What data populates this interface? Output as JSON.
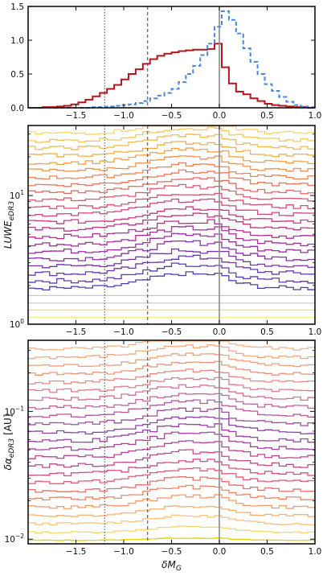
{
  "chart_data": [
    {
      "type": "step-histogram",
      "xlim": [
        -2.0,
        1.0
      ],
      "ylim": [
        0,
        1.5
      ],
      "x_ticks": [
        "-1.5",
        "-1.0",
        "-0.5",
        "0.0",
        "0.5",
        "1.0"
      ],
      "y_ticks": [
        "0.0",
        "0.5",
        "1.0",
        "1.5"
      ],
      "bin_edges_start": -2.0,
      "bin_width": 0.075,
      "reference_lines": [
        {
          "x": -1.2,
          "style": "dotted"
        },
        {
          "x": -0.75,
          "style": "dashed"
        },
        {
          "x": 0.0,
          "style": "solid-gray"
        }
      ],
      "series": [
        {
          "color": "#b5161e",
          "style": "solid",
          "values": [
            0.0,
            0.0,
            0.01,
            0.01,
            0.02,
            0.03,
            0.05,
            0.08,
            0.12,
            0.17,
            0.22,
            0.28,
            0.34,
            0.42,
            0.5,
            0.57,
            0.65,
            0.72,
            0.77,
            0.8,
            0.82,
            0.84,
            0.85,
            0.86,
            0.86,
            0.87,
            0.95,
            0.6,
            0.36,
            0.24,
            0.2,
            0.14,
            0.1,
            0.06,
            0.04,
            0.03,
            0.02,
            0.01,
            0.01,
            0.0
          ]
        },
        {
          "color": "#4a86d8",
          "style": "dashed",
          "values": [
            0.0,
            0.0,
            0.0,
            0.0,
            0.0,
            0.0,
            0.0,
            0.0,
            0.0,
            0.01,
            0.01,
            0.02,
            0.03,
            0.04,
            0.05,
            0.07,
            0.1,
            0.14,
            0.18,
            0.22,
            0.28,
            0.38,
            0.5,
            0.62,
            0.78,
            0.95,
            1.2,
            1.43,
            1.3,
            1.1,
            0.88,
            0.68,
            0.5,
            0.35,
            0.25,
            0.16,
            0.09,
            0.04,
            0.02,
            0.01
          ]
        }
      ]
    },
    {
      "type": "step-histogram-stack",
      "ylabel": "LUWE_eDR3",
      "yscale": "log",
      "xlim": [
        -2.0,
        1.0
      ],
      "ylim": [
        1,
        35
      ],
      "x_ticks": [
        "-1.5",
        "-1.0",
        "-0.5",
        "0.0",
        "0.5",
        "1.0"
      ],
      "y_ticks": [
        {
          "value": 1,
          "base": "10",
          "exp": "0"
        },
        {
          "value": 10,
          "base": "10",
          "exp": "1"
        }
      ],
      "reference_lines": [
        {
          "x": -1.2,
          "style": "dotted"
        },
        {
          "x": -0.75,
          "style": "dashed"
        },
        {
          "x": 0.0,
          "style": "solid-gray"
        }
      ],
      "levels": [
        1.13,
        1.29,
        1.46,
        1.67,
        1.9,
        2.17,
        2.48,
        2.83,
        3.23,
        3.69,
        4.2,
        4.8,
        5.48,
        6.25,
        7.13,
        8.14,
        9.29,
        10.6,
        12.1,
        13.8,
        15.7,
        18.0,
        20.5,
        23.4,
        26.7,
        30.4
      ],
      "colors": [
        "#f2f08a",
        "#f0dd7a",
        "#d0d0d0",
        "#c8c8c8",
        "#4b3fb0",
        "#5a3cae",
        "#6a38ac",
        "#7a34aa",
        "#8a30a6",
        "#9a2ea2",
        "#a82c9c",
        "#b42e94",
        "#bf338c",
        "#c93a84",
        "#d2437c",
        "#da4f75",
        "#e05a6e",
        "#e46a66",
        "#e8785e",
        "#ec8656",
        "#ef934e",
        "#f2a046",
        "#f4ae44",
        "#f6bb4a",
        "#f8c856",
        "#fad666"
      ],
      "bumps": [
        0.0,
        0.0,
        0.0,
        0.0,
        1.15,
        1.3,
        1.3,
        1.25,
        1.3,
        1.3,
        1.25,
        1.2,
        1.15,
        1.12,
        1.1,
        1.08,
        1.06,
        1.05,
        1.04,
        1.03,
        1.02,
        1.02,
        1.01,
        1.01,
        1.0,
        1.0
      ],
      "noise_seed": 7
    },
    {
      "type": "step-histogram-stack",
      "xlabel": "δM_G",
      "ylabel": "δα_eDR3 [AU]",
      "yscale": "log",
      "xlim": [
        -2.0,
        1.0
      ],
      "ylim": [
        0.0092,
        0.36
      ],
      "x_ticks": [
        "-1.5",
        "-1.0",
        "-0.5",
        "0.0",
        "0.5",
        "1.0"
      ],
      "y_ticks": [
        {
          "value": 0.01,
          "base": "10",
          "exp": "−2"
        },
        {
          "value": 0.1,
          "base": "10",
          "exp": "−1"
        }
      ],
      "reference_lines": [
        {
          "x": -1.2,
          "style": "dotted"
        },
        {
          "x": -0.75,
          "style": "dashed"
        },
        {
          "x": 0.0,
          "style": "solid-gray"
        }
      ],
      "levels": [
        0.0098,
        0.0113,
        0.0132,
        0.0153,
        0.0178,
        0.0207,
        0.024,
        0.0279,
        0.0324,
        0.0376,
        0.0437,
        0.0508,
        0.059,
        0.0686,
        0.0797,
        0.0926,
        0.1076,
        0.125,
        0.1453,
        0.1688,
        0.1961,
        0.2279,
        0.2648,
        0.3076
      ],
      "colors": [
        "#e8d200",
        "#f6d86a",
        "#f7c47a",
        "#f6b070",
        "#f49b6a",
        "#ef8568",
        "#e86f6c",
        "#de5c74",
        "#d24e80",
        "#c5478c",
        "#b84396",
        "#a9419e",
        "#9a41a4",
        "#8c44a6",
        "#a04ea2",
        "#b45a9c",
        "#c46696",
        "#d27290",
        "#dc7e8a",
        "#e48a84",
        "#ea967e",
        "#ee9f7c",
        "#f0aa80",
        "#f2b488"
      ],
      "bumps": [
        0.2,
        0.5,
        0.7,
        0.85,
        1.0,
        1.05,
        1.1,
        1.15,
        1.2,
        1.25,
        1.3,
        1.35,
        1.35,
        1.3,
        1.28,
        1.25,
        1.2,
        1.15,
        1.1,
        1.05,
        1.03,
        1.02,
        1.01,
        1.0
      ],
      "noise_seed": 13
    }
  ]
}
